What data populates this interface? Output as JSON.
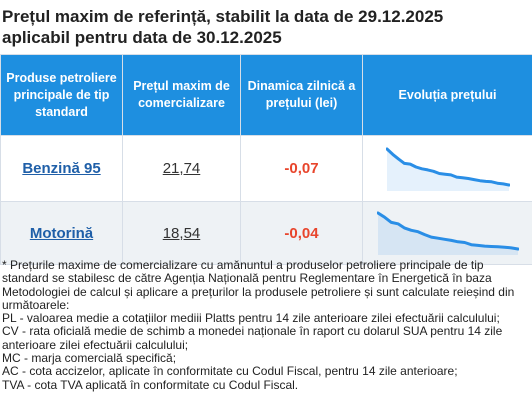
{
  "header": {
    "title_line1": "Prețul maxim de referință, stabilit la data de 29.12.2025",
    "title_line2": "aplicabil pentru data de 30.12.2025"
  },
  "table": {
    "columns": [
      "Produse petroliere principale de tip standard",
      "Prețul maxim de comercializare",
      "Dinamica zilnică a prețului (lei)",
      "Evoluția prețului"
    ],
    "rows": [
      {
        "product": "Benzină 95",
        "max_price": "21,74",
        "daily_change": "-0,07",
        "trend": [
          1.0,
          0.85,
          0.72,
          0.6,
          0.58,
          0.5,
          0.45,
          0.42,
          0.38,
          0.32,
          0.3,
          0.28,
          0.22,
          0.2,
          0.18,
          0.15,
          0.12,
          0.1,
          0.09,
          0.05,
          0.03,
          0.0
        ]
      },
      {
        "product": "Motorină",
        "max_price": "18,54",
        "daily_change": "-0,04",
        "trend": [
          1.0,
          0.88,
          0.74,
          0.7,
          0.58,
          0.52,
          0.48,
          0.4,
          0.33,
          0.3,
          0.27,
          0.24,
          0.2,
          0.18,
          0.12,
          0.1,
          0.08,
          0.07,
          0.06,
          0.05,
          0.03,
          0.0
        ]
      }
    ]
  },
  "colors": {
    "header_bg": "#1e8fe0",
    "trend_line": "#2a8ee6",
    "change_negative": "#e8452c",
    "link": "#1f5fa8"
  },
  "footnotes": [
    "* Prețurile maxime de comercializare cu amănuntul a produselor petroliere principale de tip standard se stabilesc de către Agenția Națională pentru Reglementare în Energetică în baza Metodologiei de calcul și aplicare a prețurilor la produsele petroliere și sunt calculate reieșind din următoarele:",
    "PL - valoarea medie a cotațiilor mediii Platts pentru 14 zile anterioare zilei efectuării calculului;",
    "CV - rata oficială medie de schimb a monedei naționale în raport cu dolarul SUA pentru 14 zile anterioare zilei efectuării calculului;",
    "MC - marja comercială specifică;",
    "AC - cota accizelor, aplicate în conformitate cu Codul Fiscal, pentru 14 zile anterioare;",
    "TVA - cota TVA aplicată în conformitate cu Codul Fiscal."
  ]
}
